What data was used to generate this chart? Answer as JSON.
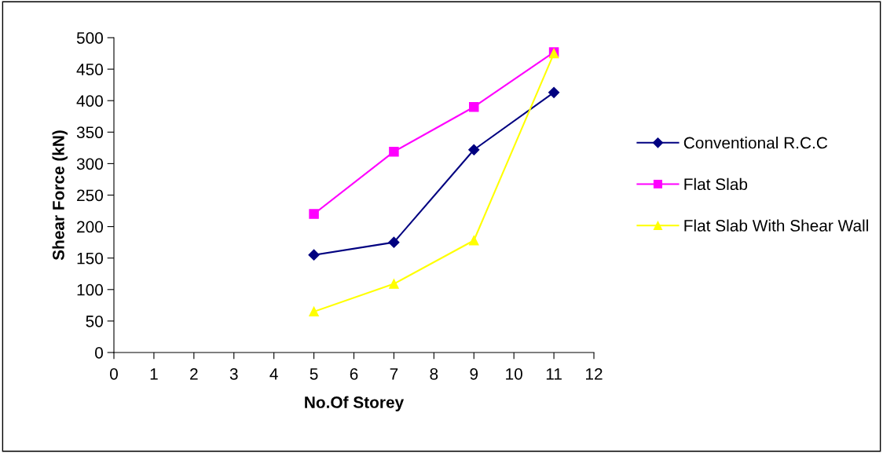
{
  "chart_data": {
    "type": "line",
    "xlabel": "No.Of Storey",
    "ylabel": "Shear Force (kN)",
    "x": [
      5,
      7,
      9,
      11
    ],
    "series": [
      {
        "name": "Conventional R.C.C",
        "color": "#000080",
        "marker": "diamond",
        "values": [
          155,
          175,
          322,
          413
        ]
      },
      {
        "name": "Flat Slab",
        "color": "#ff00ff",
        "marker": "square",
        "values": [
          220,
          319,
          390,
          477
        ]
      },
      {
        "name": "Flat Slab With Shear Wall",
        "color": "#ffff00",
        "marker": "triangle",
        "values": [
          65,
          109,
          178,
          475
        ]
      }
    ],
    "xlim": [
      0,
      12
    ],
    "xticks": [
      0,
      1,
      2,
      3,
      4,
      5,
      6,
      7,
      8,
      9,
      10,
      11,
      12
    ],
    "ylim": [
      0,
      500
    ],
    "yticks": [
      0,
      50,
      100,
      150,
      200,
      250,
      300,
      350,
      400,
      450,
      500
    ],
    "grid": false,
    "legend": "right"
  }
}
